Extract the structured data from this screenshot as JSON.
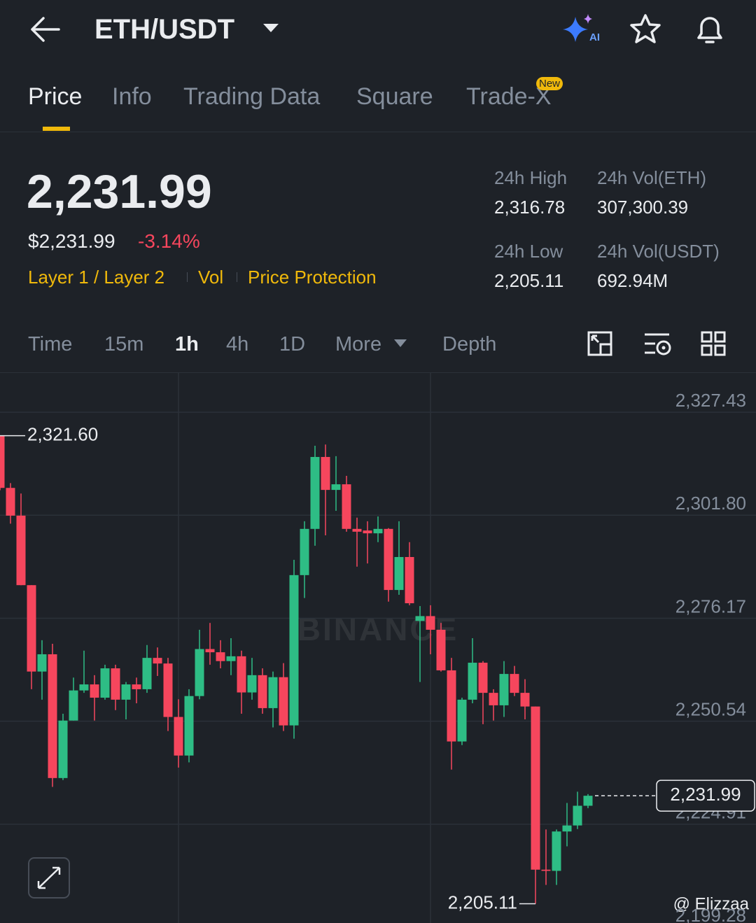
{
  "header": {
    "pair": "ETH/USDT"
  },
  "tabs": [
    "Price",
    "Info",
    "Trading Data",
    "Square",
    "Trade-X"
  ],
  "tab_badge": "New",
  "ticker": {
    "price": "2,231.99",
    "price_usd": "$2,231.99",
    "change": "-3.14%",
    "tags": [
      "Layer 1 / Layer 2",
      "Vol",
      "Price Protection"
    ],
    "stats": [
      {
        "label": "24h High",
        "value": "2,316.78"
      },
      {
        "label": "24h Vol(ETH)",
        "value": "307,300.39"
      },
      {
        "label": "24h Low",
        "value": "2,205.11"
      },
      {
        "label": "24h Vol(USDT)",
        "value": "692.94M"
      }
    ]
  },
  "timeframes": [
    "Time",
    "15m",
    "1h",
    "4h",
    "1D",
    "More",
    "Depth"
  ],
  "chart_data": {
    "type": "candlestick",
    "watermark": "BINANCE",
    "credit": "@ Elizzaa",
    "up_color": "#2ebd85",
    "down_color": "#f6465d",
    "open": [
      2321.6,
      2308.6,
      2301.7,
      2284.4,
      2262.9,
      2267.2,
      2236.4,
      2250.7,
      2258.2,
      2259.7,
      2256.4,
      2263.7,
      2255.9,
      2259.7,
      2258.5,
      2266.3,
      2264.9,
      2251.6,
      2242.0,
      2256.8,
      2268.5,
      2267.7,
      2265.5,
      2266.7,
      2257.7,
      2262.0,
      2253.8,
      2261.5,
      2249.5,
      2286.9,
      2298.4,
      2316.3,
      2308.1,
      2309.5,
      2298.4,
      2298.0,
      2297.3,
      2298.4,
      2283.2,
      2291.4,
      2275.5,
      2276.7,
      2273.3,
      2263.2,
      2245.5,
      2255.9,
      2265.1,
      2257.6,
      2254.5,
      2262.3,
      2257.6,
      2254.2,
      2213.6,
      2213.3,
      2223.1,
      2224.6,
      2229.5
    ],
    "high": [
      2321.6,
      2309.8,
      2307.2,
      2284.4,
      2270.7,
      2269.8,
      2252.4,
      2261.4,
      2268.1,
      2262.0,
      2264.6,
      2264.6,
      2260.3,
      2261.4,
      2269.5,
      2268.9,
      2266.3,
      2256.0,
      2258.5,
      2273.3,
      2275.0,
      2270.7,
      2271.2,
      2268.1,
      2266.3,
      2263.7,
      2262.9,
      2265.0,
      2290.7,
      2300.3,
      2319.1,
      2319.4,
      2316.5,
      2311.6,
      2301.2,
      2300.3,
      2301.5,
      2298.6,
      2300.3,
      2295.1,
      2279.2,
      2279.4,
      2275.0,
      2266.3,
      2256.4,
      2271.2,
      2265.5,
      2258.5,
      2265.5,
      2264.3,
      2261.0,
      2254.2,
      2223.6,
      2223.6,
      2230.2,
      2233.0,
      2232.4
    ],
    "low": [
      2308.0,
      2299.7,
      2284.4,
      2258.5,
      2255.9,
      2234.2,
      2235.9,
      2250.7,
      2257.6,
      2250.7,
      2255.9,
      2253.3,
      2251.0,
      2255.0,
      2257.6,
      2261.8,
      2248.1,
      2239.0,
      2240.3,
      2256.0,
      2264.6,
      2263.7,
      2262.0,
      2252.4,
      2255.9,
      2252.4,
      2249.0,
      2248.1,
      2246.2,
      2281.2,
      2294.2,
      2296.8,
      2302.9,
      2297.7,
      2289.0,
      2289.8,
      2295.1,
      2280.3,
      2282.0,
      2279.4,
      2260.3,
      2267.2,
      2262.9,
      2238.5,
      2244.6,
      2255.0,
      2249.8,
      2250.7,
      2251.6,
      2256.8,
      2251.0,
      2205.11,
      2209.8,
      2209.8,
      2219.4,
      2223.7,
      2228.9
    ],
    "close": [
      2308.6,
      2301.7,
      2284.4,
      2262.9,
      2267.2,
      2236.4,
      2250.7,
      2258.2,
      2259.7,
      2256.4,
      2263.7,
      2255.9,
      2259.7,
      2258.5,
      2266.3,
      2264.9,
      2251.6,
      2242.0,
      2256.8,
      2268.5,
      2267.7,
      2265.5,
      2266.7,
      2257.7,
      2262.0,
      2253.8,
      2261.5,
      2249.5,
      2286.9,
      2298.4,
      2316.3,
      2308.1,
      2309.5,
      2298.4,
      2297.7,
      2297.3,
      2298.4,
      2283.2,
      2291.4,
      2279.9,
      2276.7,
      2273.3,
      2263.2,
      2245.5,
      2255.9,
      2265.1,
      2257.6,
      2254.5,
      2262.3,
      2257.6,
      2254.2,
      2213.6,
      2213.3,
      2223.1,
      2224.6,
      2229.5,
      2231.99
    ],
    "ylim": [
      2199.28,
      2337.2
    ],
    "yticks": [
      {
        "value": 2199.28,
        "label": "2,199.28"
      },
      {
        "value": 2224.91,
        "label": "2,224.91"
      },
      {
        "value": 2250.54,
        "label": "2,250.54"
      },
      {
        "value": 2276.17,
        "label": "2,276.17"
      },
      {
        "value": 2301.8,
        "label": "2,301.80"
      },
      {
        "value": 2327.43,
        "label": "2,327.43"
      }
    ],
    "grid": true,
    "high_marker": {
      "value": 2321.6,
      "label": "2,321.60"
    },
    "low_marker": {
      "value": 2205.11,
      "label": "2,205.11"
    },
    "last_price": {
      "value": 2231.99,
      "label": "2,231.99"
    }
  }
}
